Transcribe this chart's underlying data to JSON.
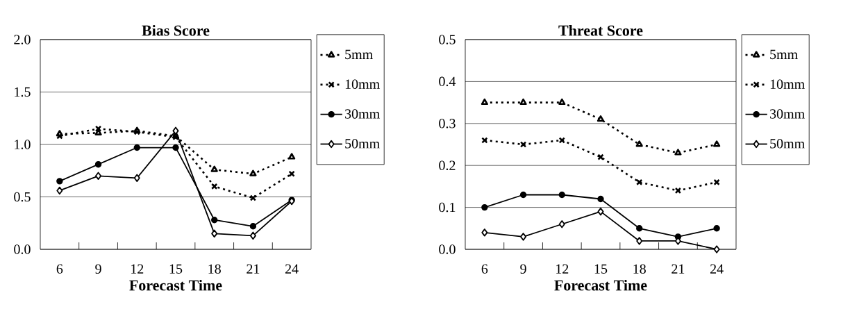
{
  "chart_data": [
    {
      "type": "line",
      "title": "Bias Score",
      "xlabel": "Forecast Time",
      "categories": [
        "6",
        "9",
        "12",
        "15",
        "18",
        "21",
        "24"
      ],
      "ylim": [
        0,
        2
      ],
      "yticks": [
        {
          "value": 0,
          "label": "0.0"
        },
        {
          "value": 0.5,
          "label": "0.5"
        },
        {
          "value": 1,
          "label": "1.0"
        },
        {
          "value": 1.5,
          "label": "1.5"
        },
        {
          "value": 2,
          "label": "2.0"
        }
      ],
      "grid": "y",
      "legend": "right",
      "series": [
        {
          "name": "5mm",
          "color": "#000000",
          "marker": "triangle",
          "line_style": "dotted",
          "values": [
            1.1,
            1.11,
            1.13,
            1.08,
            0.76,
            0.72,
            0.88
          ]
        },
        {
          "name": "10mm",
          "color": "#000000",
          "marker": "cross",
          "line_style": "dotted",
          "values": [
            1.08,
            1.15,
            1.12,
            1.07,
            0.6,
            0.49,
            0.72
          ]
        },
        {
          "name": "30mm",
          "color": "#000000",
          "marker": "circle",
          "line_style": "solid",
          "values": [
            0.65,
            0.81,
            0.97,
            0.97,
            0.28,
            0.22,
            0.47
          ]
        },
        {
          "name": "50mm",
          "color": "#000000",
          "marker": "diamond",
          "line_style": "solid",
          "values": [
            0.56,
            0.7,
            0.68,
            1.13,
            0.15,
            0.13,
            0.46
          ]
        }
      ]
    },
    {
      "type": "line",
      "title": "Threat Score",
      "xlabel": "Forecast Time",
      "categories": [
        "6",
        "9",
        "12",
        "15",
        "18",
        "21",
        "24"
      ],
      "ylim": [
        0,
        0.5
      ],
      "yticks": [
        {
          "value": 0,
          "label": "0.0"
        },
        {
          "value": 0.1,
          "label": "0.1"
        },
        {
          "value": 0.2,
          "label": "0.2"
        },
        {
          "value": 0.3,
          "label": "0.3"
        },
        {
          "value": 0.4,
          "label": "0.4"
        },
        {
          "value": 0.5,
          "label": "0.5"
        }
      ],
      "grid": "y",
      "legend": "right",
      "series": [
        {
          "name": "5mm",
          "color": "#000000",
          "marker": "triangle",
          "line_style": "dotted",
          "values": [
            0.35,
            0.35,
            0.35,
            0.31,
            0.25,
            0.23,
            0.25
          ]
        },
        {
          "name": "10mm",
          "color": "#000000",
          "marker": "cross",
          "line_style": "dotted",
          "values": [
            0.26,
            0.25,
            0.26,
            0.22,
            0.16,
            0.14,
            0.16
          ]
        },
        {
          "name": "30mm",
          "color": "#000000",
          "marker": "circle",
          "line_style": "solid",
          "values": [
            0.1,
            0.13,
            0.13,
            0.12,
            0.05,
            0.03,
            0.05
          ]
        },
        {
          "name": "50mm",
          "color": "#000000",
          "marker": "diamond",
          "line_style": "solid",
          "values": [
            0.04,
            0.03,
            0.06,
            0.09,
            0.02,
            0.02,
            0.0
          ]
        }
      ]
    }
  ]
}
